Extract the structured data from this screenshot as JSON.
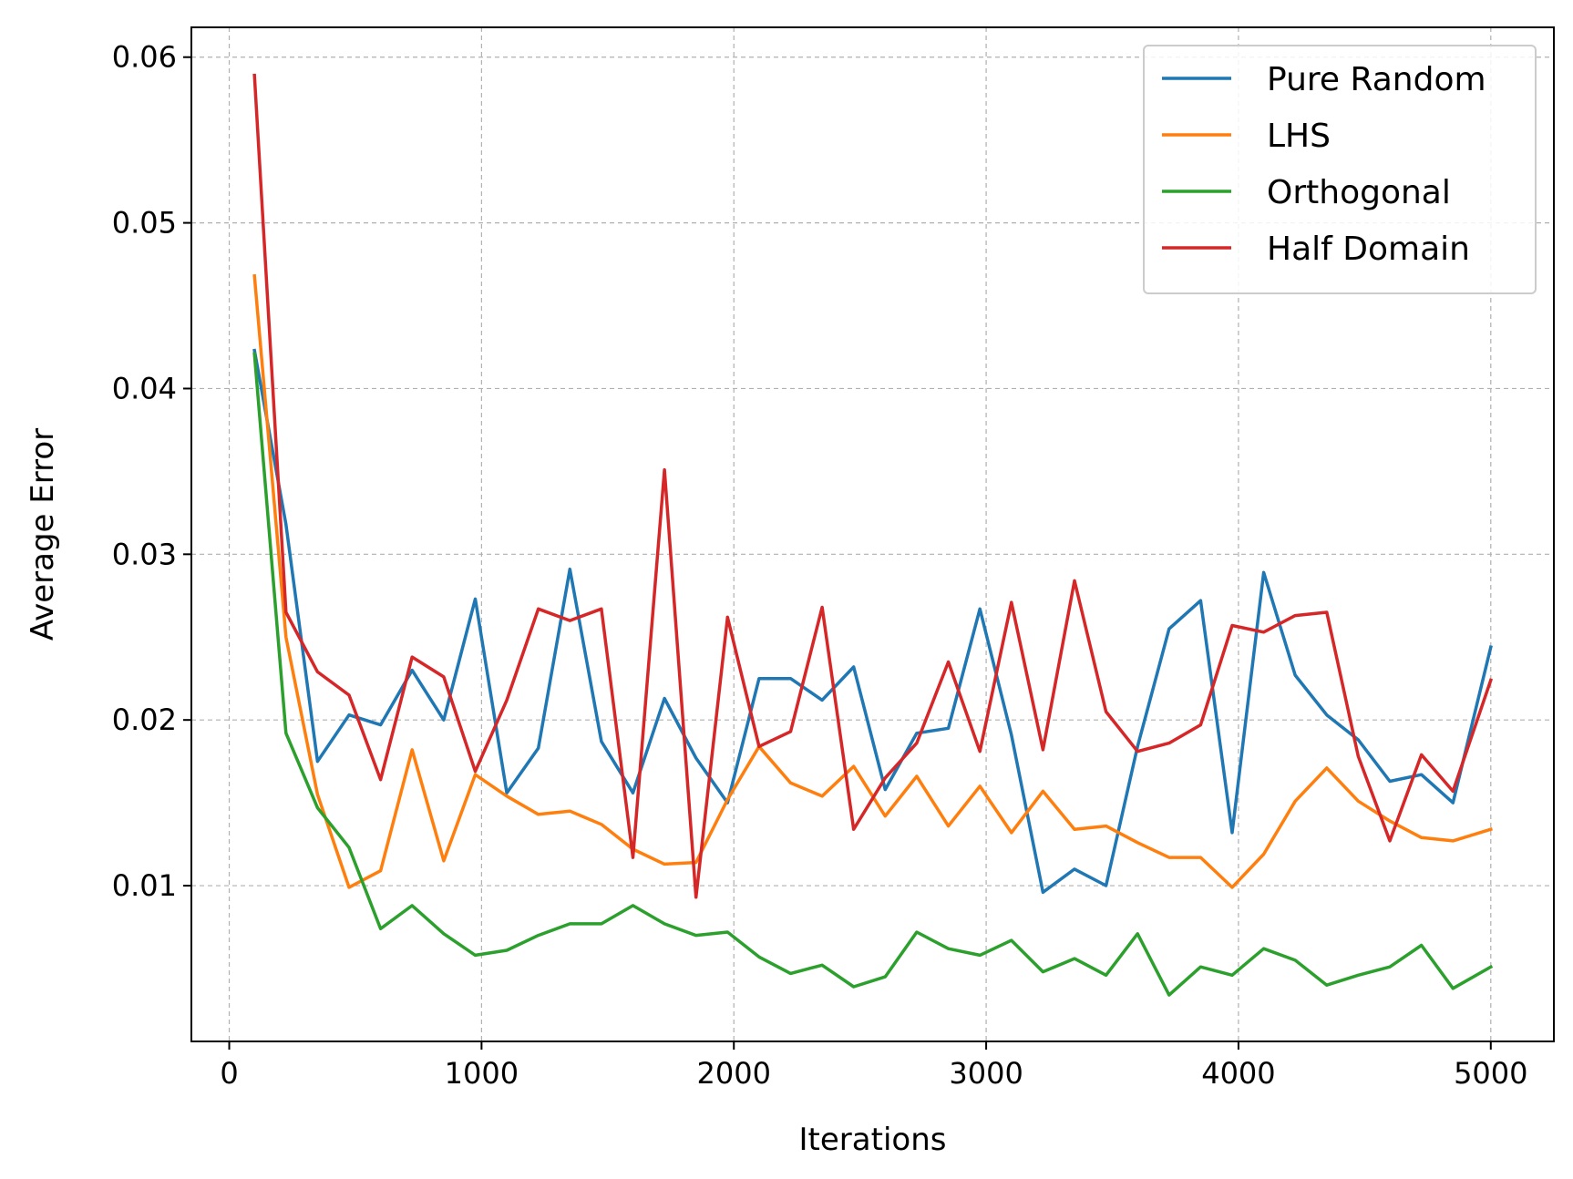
{
  "chart_data": {
    "type": "line",
    "title": "",
    "xlabel": "Iterations",
    "ylabel": "Average Error",
    "xlim": [
      -150,
      5250
    ],
    "ylim": [
      0.0006,
      0.0618
    ],
    "xticks": [
      0,
      1000,
      2000,
      3000,
      4000,
      5000
    ],
    "xtick_labels": [
      "0",
      "1000",
      "2000",
      "3000",
      "4000",
      "5000"
    ],
    "yticks": [
      0.01,
      0.02,
      0.03,
      0.04,
      0.05,
      0.06
    ],
    "ytick_labels": [
      "0.01",
      "0.02",
      "0.03",
      "0.04",
      "0.05",
      "0.06"
    ],
    "grid": true,
    "legend_position": "top-right",
    "x": [
      100,
      225,
      350,
      475,
      600,
      725,
      850,
      975,
      1100,
      1225,
      1350,
      1475,
      1600,
      1725,
      1850,
      1975,
      2100,
      2225,
      2350,
      2475,
      2600,
      2725,
      2850,
      2975,
      3100,
      3225,
      3350,
      3475,
      3600,
      3725,
      3850,
      3975,
      4100,
      4225,
      4350,
      4475,
      4600,
      4725,
      4850,
      5000
    ],
    "series": [
      {
        "name": "Pure Random",
        "color": "#1f77b4",
        "values": [
          0.0423,
          0.0318,
          0.0175,
          0.0203,
          0.0197,
          0.023,
          0.02,
          0.0273,
          0.0156,
          0.0183,
          0.0291,
          0.0187,
          0.0156,
          0.0213,
          0.0177,
          0.015,
          0.0225,
          0.0225,
          0.0212,
          0.0232,
          0.0158,
          0.0192,
          0.0195,
          0.0267,
          0.0191,
          0.0096,
          0.011,
          0.01,
          0.0184,
          0.0255,
          0.0272,
          0.0132,
          0.0289,
          0.0227,
          0.0203,
          0.0188,
          0.0163,
          0.0167,
          0.015,
          0.0244
        ]
      },
      {
        "name": "LHS",
        "color": "#ff7f0e",
        "values": [
          0.0468,
          0.025,
          0.0155,
          0.0099,
          0.0109,
          0.0182,
          0.0115,
          0.0167,
          0.0154,
          0.0143,
          0.0145,
          0.0137,
          0.0122,
          0.0113,
          0.0114,
          0.0152,
          0.0184,
          0.0162,
          0.0154,
          0.0172,
          0.0142,
          0.0166,
          0.0136,
          0.016,
          0.0132,
          0.0157,
          0.0134,
          0.0136,
          0.0126,
          0.0117,
          0.0117,
          0.0099,
          0.0119,
          0.0151,
          0.0171,
          0.0151,
          0.0139,
          0.0129,
          0.0127,
          0.0134
        ]
      },
      {
        "name": "Orthogonal",
        "color": "#2ca02c",
        "values": [
          0.0421,
          0.0192,
          0.0147,
          0.0123,
          0.0074,
          0.0088,
          0.0071,
          0.0058,
          0.0061,
          0.007,
          0.0077,
          0.0077,
          0.0088,
          0.0077,
          0.007,
          0.0072,
          0.0057,
          0.0047,
          0.0052,
          0.0039,
          0.0045,
          0.0072,
          0.0062,
          0.0058,
          0.0067,
          0.0048,
          0.0056,
          0.0046,
          0.0071,
          0.0034,
          0.0051,
          0.0046,
          0.0062,
          0.0055,
          0.004,
          0.0046,
          0.0051,
          0.0064,
          0.0038,
          0.0051
        ]
      },
      {
        "name": "Half Domain",
        "color": "#d62728",
        "values": [
          0.0589,
          0.0265,
          0.0229,
          0.0215,
          0.0164,
          0.0238,
          0.0226,
          0.0169,
          0.0212,
          0.0267,
          0.026,
          0.0267,
          0.0117,
          0.0351,
          0.0093,
          0.0262,
          0.0184,
          0.0193,
          0.0268,
          0.0134,
          0.0165,
          0.0186,
          0.0235,
          0.0181,
          0.0271,
          0.0182,
          0.0284,
          0.0205,
          0.0181,
          0.0186,
          0.0197,
          0.0257,
          0.0253,
          0.0263,
          0.0265,
          0.0178,
          0.0127,
          0.0179,
          0.0157,
          0.0224
        ]
      }
    ]
  }
}
